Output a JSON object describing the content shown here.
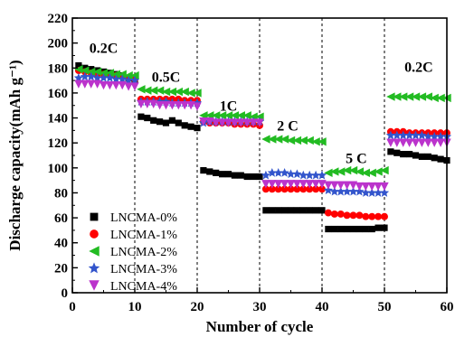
{
  "chart_data": {
    "type": "scatter",
    "xlabel": "Number of cycle",
    "ylabel": "Discharge capacity(mAh g⁻¹)",
    "xlim": [
      0,
      60
    ],
    "ylim": [
      0,
      220
    ],
    "x_ticks": [
      0,
      10,
      20,
      30,
      40,
      50,
      60
    ],
    "y_ticks": [
      0,
      20,
      40,
      60,
      80,
      100,
      120,
      140,
      160,
      180,
      200,
      220
    ],
    "grid": false,
    "legend": "bottom-left",
    "section_dividers_x": [
      10,
      20,
      30,
      40,
      50
    ],
    "annotations": [
      {
        "text": "0.2C",
        "x": 5,
        "y": 192
      },
      {
        "text": "0.5C",
        "x": 15,
        "y": 169
      },
      {
        "text": "1C",
        "x": 25,
        "y": 146
      },
      {
        "text": "2 C",
        "x": 34.5,
        "y": 130
      },
      {
        "text": "5 C",
        "x": 45.5,
        "y": 104
      },
      {
        "text": "0.2C",
        "x": 55.5,
        "y": 177
      }
    ],
    "series": [
      {
        "name": "LNCMA-0%",
        "marker": "square",
        "color": "#000000",
        "x": [
          1,
          2,
          3,
          4,
          5,
          6,
          7,
          8,
          9,
          10,
          11,
          12,
          13,
          14,
          15,
          16,
          17,
          18,
          19,
          20,
          21,
          22,
          23,
          24,
          25,
          26,
          27,
          28,
          29,
          30,
          31,
          32,
          33,
          34,
          35,
          36,
          37,
          38,
          39,
          40,
          41,
          42,
          43,
          44,
          45,
          46,
          47,
          48,
          49,
          50,
          51,
          52,
          53,
          54,
          55,
          56,
          57,
          58,
          59,
          60
        ],
        "y": [
          182,
          180,
          179,
          178,
          177,
          176,
          175,
          174,
          172,
          170,
          141,
          140,
          138,
          137,
          136,
          138,
          136,
          134,
          133,
          132,
          98,
          97,
          96,
          95,
          95,
          94,
          94,
          93,
          93,
          93,
          66,
          66,
          66,
          66,
          66,
          66,
          66,
          66,
          66,
          66,
          51,
          51,
          51,
          51,
          51,
          51,
          51,
          51,
          52,
          52,
          113,
          112,
          111,
          111,
          110,
          109,
          109,
          108,
          107,
          106
        ]
      },
      {
        "name": "LNCMA-1%",
        "marker": "circle",
        "color": "#ff0000",
        "x": [
          1,
          2,
          3,
          4,
          5,
          6,
          7,
          8,
          9,
          10,
          11,
          12,
          13,
          14,
          15,
          16,
          17,
          18,
          19,
          20,
          21,
          22,
          23,
          24,
          25,
          26,
          27,
          28,
          29,
          30,
          31,
          32,
          33,
          34,
          35,
          36,
          37,
          38,
          39,
          40,
          41,
          42,
          43,
          44,
          45,
          46,
          47,
          48,
          49,
          50,
          51,
          52,
          53,
          54,
          55,
          56,
          57,
          58,
          59,
          60
        ],
        "y": [
          178,
          177,
          176,
          175,
          175,
          174,
          174,
          173,
          172,
          171,
          155,
          155,
          155,
          155,
          155,
          155,
          155,
          154,
          154,
          154,
          137,
          136,
          136,
          136,
          136,
          135,
          135,
          135,
          135,
          134,
          83,
          83,
          83,
          83,
          83,
          83,
          83,
          83,
          83,
          83,
          64,
          63,
          63,
          62,
          62,
          62,
          61,
          61,
          61,
          61,
          129,
          129,
          129,
          128,
          128,
          128,
          128,
          128,
          128,
          128
        ]
      },
      {
        "name": "LNCMA-2%",
        "marker": "triangle-left",
        "color": "#22bb22",
        "x": [
          1,
          2,
          3,
          4,
          5,
          6,
          7,
          8,
          9,
          10,
          11,
          12,
          13,
          14,
          15,
          16,
          17,
          18,
          19,
          20,
          21,
          22,
          23,
          24,
          25,
          26,
          27,
          28,
          29,
          30,
          31,
          32,
          33,
          34,
          35,
          36,
          37,
          38,
          39,
          40,
          41,
          42,
          43,
          44,
          45,
          46,
          47,
          48,
          49,
          50,
          51,
          52,
          53,
          54,
          55,
          56,
          57,
          58,
          59,
          60
        ],
        "y": [
          179,
          178,
          177,
          177,
          176,
          176,
          175,
          175,
          174,
          174,
          163,
          162,
          162,
          162,
          161,
          161,
          161,
          161,
          160,
          160,
          142,
          142,
          142,
          142,
          142,
          142,
          142,
          142,
          141,
          141,
          123,
          123,
          123,
          123,
          122,
          122,
          122,
          122,
          121,
          121,
          96,
          97,
          97,
          98,
          98,
          97,
          96,
          96,
          97,
          98,
          157,
          157,
          157,
          157,
          157,
          157,
          157,
          156,
          156,
          156
        ]
      },
      {
        "name": "LNCMA-3%",
        "marker": "star",
        "color": "#3355cc",
        "x": [
          1,
          2,
          3,
          4,
          5,
          6,
          7,
          8,
          9,
          10,
          11,
          12,
          13,
          14,
          15,
          16,
          17,
          18,
          19,
          20,
          21,
          22,
          23,
          24,
          25,
          26,
          27,
          28,
          29,
          30,
          31,
          32,
          33,
          34,
          35,
          36,
          37,
          38,
          39,
          40,
          41,
          42,
          43,
          44,
          45,
          46,
          47,
          48,
          49,
          50,
          51,
          52,
          53,
          54,
          55,
          56,
          57,
          58,
          59,
          60
        ],
        "y": [
          172,
          173,
          173,
          172,
          172,
          172,
          171,
          171,
          170,
          170,
          153,
          153,
          153,
          153,
          153,
          152,
          152,
          152,
          152,
          152,
          136,
          137,
          137,
          137,
          137,
          137,
          137,
          137,
          137,
          137,
          94,
          96,
          96,
          96,
          95,
          95,
          94,
          94,
          94,
          94,
          82,
          81,
          81,
          81,
          81,
          81,
          80,
          80,
          80,
          80,
          126,
          126,
          126,
          126,
          126,
          126,
          125,
          125,
          125,
          125
        ]
      },
      {
        "name": "LNCMA-4%",
        "marker": "triangle-down",
        "color": "#bb33cc",
        "x": [
          1,
          2,
          3,
          4,
          5,
          6,
          7,
          8,
          9,
          10,
          11,
          12,
          13,
          14,
          15,
          16,
          17,
          18,
          19,
          20,
          21,
          22,
          23,
          24,
          25,
          26,
          27,
          28,
          29,
          30,
          31,
          32,
          33,
          34,
          35,
          36,
          37,
          38,
          39,
          40,
          41,
          42,
          43,
          44,
          45,
          46,
          47,
          48,
          49,
          50,
          51,
          52,
          53,
          54,
          55,
          56,
          57,
          58,
          59,
          60
        ],
        "y": [
          167,
          167,
          167,
          167,
          166,
          166,
          166,
          166,
          165,
          165,
          151,
          151,
          151,
          150,
          150,
          150,
          150,
          150,
          150,
          149,
          137,
          137,
          136,
          136,
          136,
          136,
          136,
          136,
          136,
          136,
          87,
          87,
          87,
          87,
          87,
          87,
          87,
          87,
          87,
          87,
          86,
          86,
          86,
          86,
          86,
          85,
          85,
          85,
          85,
          85,
          120,
          120,
          120,
          120,
          120,
          120,
          120,
          120,
          120,
          120
        ]
      }
    ]
  }
}
